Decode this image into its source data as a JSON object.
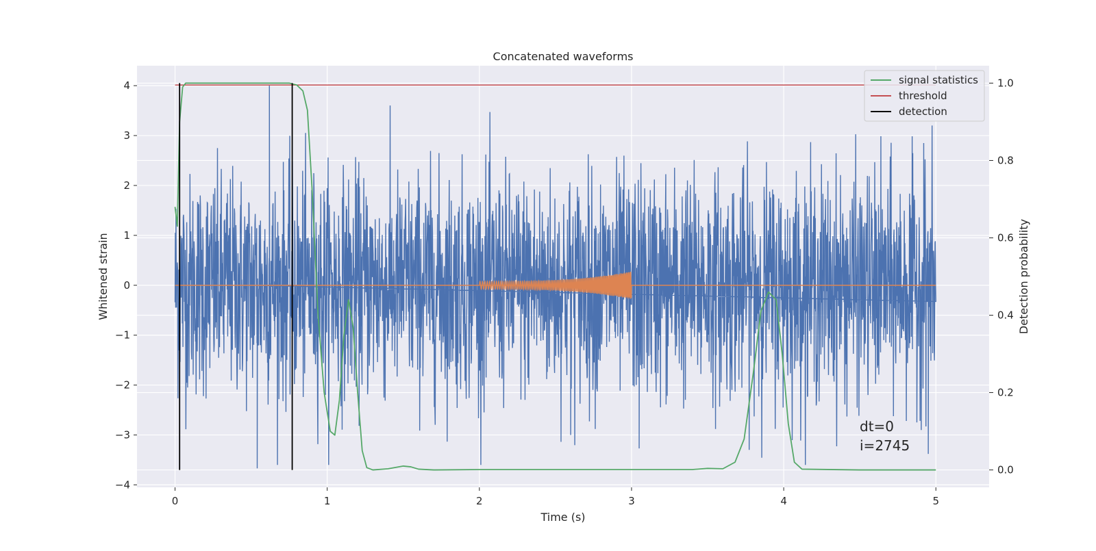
{
  "chart_data": {
    "type": "line",
    "title": "Concatenated waveforms",
    "xlabel": "Time (s)",
    "ylabel": "Whitened strain",
    "y2label": "Detection probability",
    "xlim": [
      -0.25,
      5.35
    ],
    "ylim": [
      -4.05,
      4.4
    ],
    "y2lim": [
      -0.045,
      1.045
    ],
    "xticks": [
      0,
      1,
      2,
      3,
      4,
      5
    ],
    "xtick_labels": [
      "0",
      "1",
      "2",
      "3",
      "4",
      "5"
    ],
    "yticks": [
      -4,
      -3,
      -2,
      -1,
      0,
      1,
      2,
      3,
      4
    ],
    "ytick_labels": [
      "−4",
      "−3",
      "−2",
      "−1",
      "0",
      "1",
      "2",
      "3",
      "4"
    ],
    "y2ticks": [
      0.0,
      0.2,
      0.4,
      0.6,
      0.8,
      1.0
    ],
    "y2tick_labels": [
      "0.0",
      "0.2",
      "0.4",
      "0.6",
      "0.8",
      "1.0"
    ],
    "grid": true,
    "legend_position": "top-right",
    "series": [
      {
        "kind": "noise",
        "axis": "left",
        "color": "#4c72b0",
        "x_range": [
          0,
          5
        ],
        "amplitude": 1.1,
        "extremes": [
          [
            0.54,
            -3.67
          ],
          [
            0.62,
            4.0
          ],
          [
            2.6,
            -3.0
          ],
          [
            3.05,
            -3.27
          ],
          [
            4.95,
            -3.38
          ],
          [
            4.92,
            2.85
          ]
        ]
      },
      {
        "kind": "chirp",
        "axis": "left",
        "color": "#dd8452",
        "baseline_x_range": [
          0,
          5
        ],
        "x_range": [
          2.0,
          3.0
        ],
        "amplitude_start": 0.08,
        "amplitude_end": 0.28
      },
      {
        "name": "signal statistics",
        "axis": "right",
        "color": "#55a868",
        "x": [
          0.0,
          0.015,
          0.03,
          0.05,
          0.07,
          0.1,
          0.2,
          0.4,
          0.6,
          0.7,
          0.75,
          0.8,
          0.84,
          0.87,
          0.9,
          0.94,
          0.98,
          1.02,
          1.05,
          1.08,
          1.11,
          1.14,
          1.17,
          1.2,
          1.23,
          1.26,
          1.3,
          1.4,
          1.5,
          1.55,
          1.6,
          1.7,
          2.0,
          2.5,
          2.8,
          3.0,
          3.4,
          3.5,
          3.6,
          3.68,
          3.74,
          3.8,
          3.85,
          3.9,
          3.95,
          3.99,
          4.03,
          4.07,
          4.12,
          4.5,
          5.0
        ],
        "y": [
          0.68,
          0.63,
          0.9,
          0.99,
          1.0,
          1.0,
          1.0,
          1.0,
          1.0,
          1.0,
          1.0,
          0.995,
          0.98,
          0.93,
          0.73,
          0.4,
          0.2,
          0.1,
          0.09,
          0.18,
          0.35,
          0.44,
          0.37,
          0.2,
          0.05,
          0.006,
          0.0,
          0.003,
          0.01,
          0.008,
          0.002,
          0.0,
          0.001,
          0.001,
          0.001,
          0.001,
          0.001,
          0.004,
          0.003,
          0.02,
          0.08,
          0.25,
          0.41,
          0.46,
          0.44,
          0.3,
          0.12,
          0.02,
          0.002,
          0.0,
          0.0
        ]
      },
      {
        "name": "threshold",
        "axis": "right",
        "color": "#c44e52",
        "x": [
          0,
          5
        ],
        "y": [
          0.995,
          0.995
        ]
      },
      {
        "name": "detection",
        "axis": "right",
        "color": "#000000",
        "vlines": [
          0.03,
          0.77
        ],
        "y_range": [
          0.0,
          1.0
        ]
      }
    ],
    "annotations": [
      "dt=0",
      "i=2745"
    ]
  }
}
